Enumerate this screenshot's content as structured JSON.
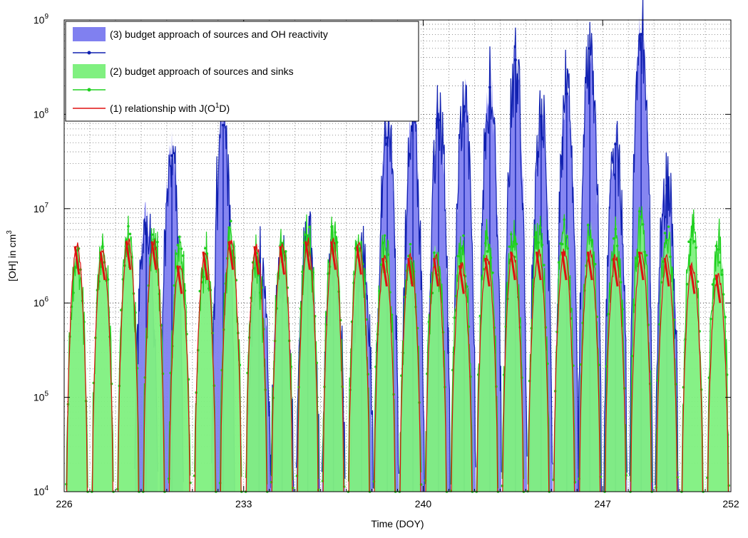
{
  "chart_data": {
    "type": "area",
    "xlabel": "Time (DOY)",
    "ylabel_main": "[OH] in cm",
    "ylabel_sup": "3",
    "x_ticks": [
      226,
      233,
      240,
      247,
      252
    ],
    "x_labels": [
      "226",
      "233",
      "240",
      "247",
      "252"
    ],
    "y_ticks": [
      10000,
      100000,
      1000000,
      10000000,
      100000000,
      1000000000
    ],
    "y_label_bases": [
      "10",
      "10",
      "10",
      "10",
      "10",
      "10"
    ],
    "y_label_exps": [
      "4",
      "5",
      "6",
      "7",
      "8",
      "9"
    ],
    "xlim": [
      226,
      252
    ],
    "ylim": [
      10000,
      1000000000
    ],
    "y_scale": "log",
    "grid": true,
    "legend_position": "top-left",
    "colors": {
      "series3_fill": "#8080f0",
      "series3_line": "#1020b0",
      "series2_fill": "#80f080",
      "series2_line": "#20d020",
      "series1_line": "#e01010"
    },
    "legend": [
      {
        "kind": "fill",
        "color": "#8080f0",
        "text": "(3) budget approach of sources and OH reactivity"
      },
      {
        "kind": "line-marker",
        "color": "#1020b0",
        "text": ""
      },
      {
        "kind": "fill",
        "color": "#80f080",
        "text": "(2) budget approach of sources and sinks"
      },
      {
        "kind": "line-marker",
        "color": "#20d020",
        "text": ""
      },
      {
        "kind": "line",
        "color": "#e01010",
        "text_main": "(1) relationship with J(O",
        "text_sup": "1",
        "text_end": "D)"
      }
    ],
    "series": [
      {
        "name": "(3) budget approach of sources and OH reactivity",
        "daily_peaks": [
          {
            "day": 229.2,
            "value": 8000000
          },
          {
            "day": 230.2,
            "value": 40000000
          },
          {
            "day": 232.2,
            "value": 100000000
          },
          {
            "day": 233.6,
            "value": 3000000
          },
          {
            "day": 234.5,
            "value": 2500000
          },
          {
            "day": 235.5,
            "value": 5000000
          },
          {
            "day": 236.5,
            "value": 3000000
          },
          {
            "day": 237.6,
            "value": 3000000
          },
          {
            "day": 238.6,
            "value": 80000000
          },
          {
            "day": 239.6,
            "value": 100000000
          },
          {
            "day": 240.6,
            "value": 100000000
          },
          {
            "day": 241.6,
            "value": 150000000
          },
          {
            "day": 242.6,
            "value": 200000000
          },
          {
            "day": 243.6,
            "value": 400000000
          },
          {
            "day": 244.6,
            "value": 100000000
          },
          {
            "day": 245.6,
            "value": 200000000
          },
          {
            "day": 246.5,
            "value": 500000000
          },
          {
            "day": 247.5,
            "value": 60000000
          },
          {
            "day": 248.5,
            "value": 900000000
          },
          {
            "day": 249.5,
            "value": 20000000
          }
        ]
      },
      {
        "name": "(2) budget approach of sources and sinks",
        "daily_peaks": [
          {
            "day": 226.5,
            "value": 3000000
          },
          {
            "day": 227.5,
            "value": 4000000
          },
          {
            "day": 228.5,
            "value": 5000000
          },
          {
            "day": 229.5,
            "value": 5000000
          },
          {
            "day": 230.5,
            "value": 4000000
          },
          {
            "day": 231.5,
            "value": 3000000
          },
          {
            "day": 232.5,
            "value": 5000000
          },
          {
            "day": 233.5,
            "value": 3000000
          },
          {
            "day": 234.5,
            "value": 4000000
          },
          {
            "day": 235.5,
            "value": 5000000
          },
          {
            "day": 236.5,
            "value": 5000000
          },
          {
            "day": 237.5,
            "value": 5000000
          },
          {
            "day": 238.5,
            "value": 4000000
          },
          {
            "day": 239.5,
            "value": 3000000
          },
          {
            "day": 240.5,
            "value": 3000000
          },
          {
            "day": 241.5,
            "value": 4000000
          },
          {
            "day": 242.5,
            "value": 5000000
          },
          {
            "day": 243.5,
            "value": 5000000
          },
          {
            "day": 244.5,
            "value": 6000000
          },
          {
            "day": 245.5,
            "value": 6000000
          },
          {
            "day": 246.5,
            "value": 6000000
          },
          {
            "day": 247.5,
            "value": 5000000
          },
          {
            "day": 248.5,
            "value": 8000000
          },
          {
            "day": 249.5,
            "value": 5000000
          },
          {
            "day": 250.5,
            "value": 5000000
          },
          {
            "day": 251.5,
            "value": 4000000
          }
        ]
      },
      {
        "name": "(1) relationship with J(O1D)",
        "daily_peaks": [
          {
            "day": 226.5,
            "value": 4000000
          },
          {
            "day": 227.5,
            "value": 3500000
          },
          {
            "day": 228.5,
            "value": 4500000
          },
          {
            "day": 229.5,
            "value": 4500000
          },
          {
            "day": 230.5,
            "value": 2500000
          },
          {
            "day": 231.5,
            "value": 3500000
          },
          {
            "day": 232.5,
            "value": 4500000
          },
          {
            "day": 233.5,
            "value": 4000000
          },
          {
            "day": 234.5,
            "value": 4000000
          },
          {
            "day": 235.5,
            "value": 4500000
          },
          {
            "day": 236.5,
            "value": 4500000
          },
          {
            "day": 237.5,
            "value": 4000000
          },
          {
            "day": 238.5,
            "value": 3000000
          },
          {
            "day": 239.5,
            "value": 3000000
          },
          {
            "day": 240.5,
            "value": 3000000
          },
          {
            "day": 241.5,
            "value": 2500000
          },
          {
            "day": 242.5,
            "value": 3000000
          },
          {
            "day": 243.5,
            "value": 3500000
          },
          {
            "day": 244.5,
            "value": 3500000
          },
          {
            "day": 245.5,
            "value": 3500000
          },
          {
            "day": 246.5,
            "value": 3500000
          },
          {
            "day": 247.5,
            "value": 3000000
          },
          {
            "day": 248.5,
            "value": 3500000
          },
          {
            "day": 249.5,
            "value": 3000000
          },
          {
            "day": 250.5,
            "value": 2500000
          },
          {
            "day": 251.5,
            "value": 2000000
          }
        ]
      }
    ]
  }
}
